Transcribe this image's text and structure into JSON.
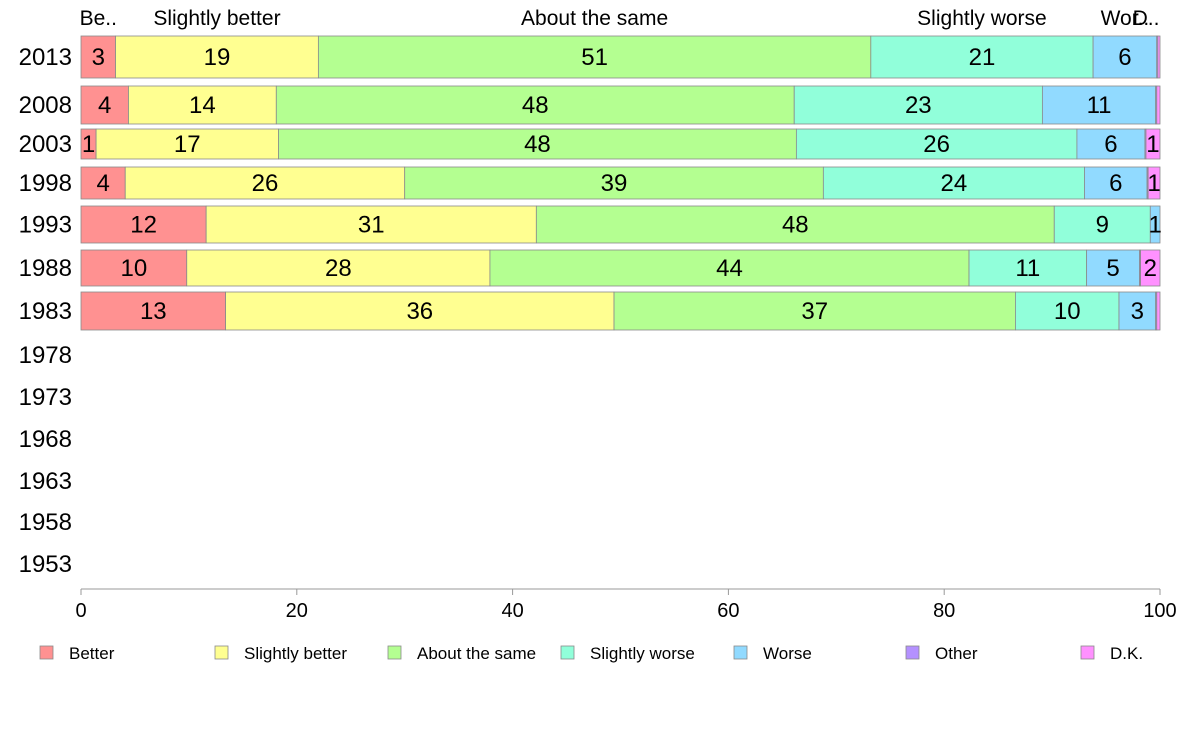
{
  "chart_data": {
    "type": "bar",
    "orientation": "horizontal",
    "stacked": true,
    "title": "",
    "xlabel": "",
    "ylabel": "",
    "xlim": [
      0,
      100
    ],
    "x_ticks": [
      0,
      20,
      40,
      60,
      80,
      100
    ],
    "grid": false,
    "legend_position": "bottom",
    "categories": [
      "2013",
      "2008",
      "2003",
      "1998",
      "1993",
      "1988",
      "1983",
      "1978",
      "1973",
      "1968",
      "1963",
      "1958",
      "1953"
    ],
    "series": [
      {
        "name": "Better",
        "color": "#ff9191",
        "values": [
          3.2,
          4.4,
          1.4,
          4.1,
          11.6,
          9.8,
          13.4,
          null,
          null,
          null,
          null,
          null,
          null
        ]
      },
      {
        "name": "Slightly better",
        "color": "#ffff91",
        "values": [
          18.8,
          13.7,
          16.9,
          25.9,
          30.6,
          28.1,
          36.0,
          null,
          null,
          null,
          null,
          null,
          null
        ]
      },
      {
        "name": "About the same",
        "color": "#b4ff91",
        "values": [
          51.2,
          48.0,
          48.0,
          38.8,
          48.0,
          44.4,
          37.2,
          null,
          null,
          null,
          null,
          null,
          null
        ]
      },
      {
        "name": "Slightly worse",
        "color": "#91ffda",
        "values": [
          20.6,
          23.0,
          26.0,
          24.2,
          8.9,
          10.9,
          9.6,
          null,
          null,
          null,
          null,
          null,
          null
        ]
      },
      {
        "name": "Worse",
        "color": "#91daff",
        "values": [
          5.9,
          10.5,
          6.3,
          5.8,
          0.9,
          4.9,
          3.4,
          null,
          null,
          null,
          null,
          null,
          null
        ]
      },
      {
        "name": "Other",
        "color": "#b491ff",
        "values": [
          0.1,
          0.1,
          0.1,
          0.1,
          0.0,
          0.1,
          0.1,
          null,
          null,
          null,
          null,
          null,
          null
        ]
      },
      {
        "name": "D.K.",
        "color": "#ff91ff",
        "values": [
          0.2,
          0.3,
          1.3,
          1.1,
          0.0,
          1.8,
          0.3,
          null,
          null,
          null,
          null,
          null,
          null
        ]
      }
    ],
    "data_labels": [
      [
        "3",
        "19",
        "51",
        "21",
        "6",
        "",
        ""
      ],
      [
        "4",
        "14",
        "48",
        "23",
        "11",
        "",
        ""
      ],
      [
        "1",
        "17",
        "48",
        "26",
        "6",
        "",
        "1"
      ],
      [
        "4",
        "26",
        "39",
        "24",
        "6",
        "",
        "1"
      ],
      [
        "12",
        "31",
        "48",
        "9",
        "1",
        "",
        ""
      ],
      [
        "10",
        "28",
        "44",
        "11",
        "5",
        "",
        "2"
      ],
      [
        "13",
        "36",
        "37",
        "10",
        "3",
        "",
        ""
      ]
    ],
    "top_labels": [
      "Be..",
      "Slightly better",
      "About the same",
      "Slightly worse",
      "Wor..",
      "",
      "D.."
    ]
  }
}
